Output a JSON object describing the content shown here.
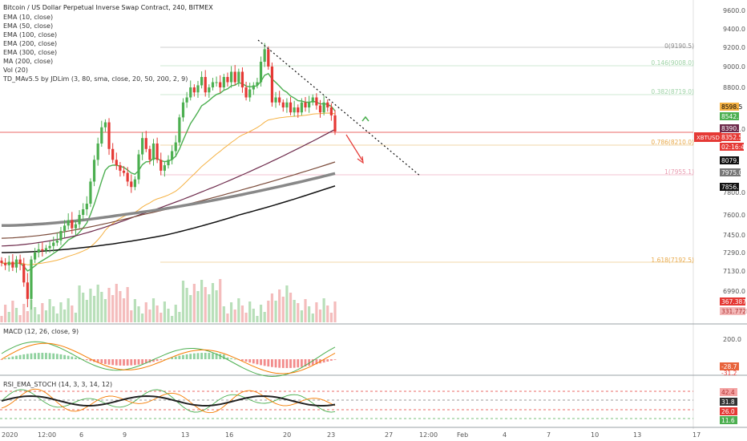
{
  "header": {
    "title": "Bitcoin / US Dollar Perpetual Inverse Swap Contract, 240, BITMEX",
    "indicators": [
      "EMA (10, close)",
      "EMA (50, close)",
      "EMA (100, close)",
      "EMA (200, close)",
      "EMA (300, close)",
      "MA (200, close)",
      "Vol (20)",
      "TD_MAv5.5 by JDLim (3, 80, sma, close, 20, 50, 200, 2, 9)"
    ]
  },
  "price_axis": {
    "ticks": [
      "9600.0",
      "9400.0",
      "9200.0",
      "9000.0",
      "8800.0",
      "8600.0",
      "7800.0",
      "7600.0",
      "7450.0",
      "7290.0",
      "7130.0",
      "6990.0"
    ]
  },
  "price_labels": {
    "p1": "8598.5",
    "p2": "8542.5",
    "p3": "8390.0",
    "symbol": "XBTUSD",
    "p4": "8352.5",
    "countdown": "02:16:42",
    "p5": "8079.5",
    "p6": "7975.0",
    "p7": "7856.5",
    "vol1": "367.387M",
    "vol2": "331.772M"
  },
  "fib": {
    "l0": "0(9190.5)",
    "l1": "0.146(9008.0)",
    "l2": "0.382(8719.0)",
    "l3": "0.786(8210.0)",
    "l4": "1(7955.1)",
    "l5": "1.618(7192.5)"
  },
  "macd": {
    "label": "MACD (12, 26, close, 9)",
    "tick": "200.0",
    "v1": "-28.7",
    "v2": "-31.2"
  },
  "rsi": {
    "label": "RSI_EMA_STOCH (14, 3, 3, 14, 12)",
    "v1": "42.4",
    "v2": "31.8",
    "v3": "26.0",
    "v4": "11.6"
  },
  "time_axis": {
    "labels": [
      "2020",
      "12:00",
      "6",
      "9",
      "13",
      "16",
      "20",
      "23",
      "27",
      "12:00",
      "Feb",
      "4",
      "7",
      "10",
      "13",
      "17"
    ]
  },
  "colors": {
    "up": "#4caf50",
    "down": "#e53935",
    "ema10": "#4caf50",
    "ema50": "#f5b142",
    "ema100": "#6d2a4b",
    "ema200": "#7b4b3a",
    "ema300": "#888888",
    "ma200": "#111111"
  },
  "chart_data": {
    "type": "candlestick",
    "title": "Bitcoin / US Dollar Perpetual Inverse Swap Contract, 240, BITMEX",
    "ylim": [
      6880,
      9700
    ],
    "close_series": [
      7200,
      7180,
      7210,
      7160,
      7230,
      7190,
      7050,
      6950,
      7230,
      7290,
      7320,
      7310,
      7330,
      7350,
      7380,
      7400,
      7480,
      7520,
      7560,
      7500,
      7530,
      7600,
      7650,
      7700,
      7900,
      8100,
      8250,
      8400,
      8450,
      8200,
      8100,
      8050,
      8000,
      7980,
      7900,
      7850,
      7920,
      8150,
      8300,
      8200,
      8100,
      8250,
      8100,
      8000,
      8050,
      8100,
      8180,
      8260,
      8500,
      8650,
      8700,
      8800,
      8750,
      8820,
      8900,
      8750,
      8800,
      8850,
      8850,
      8800,
      8900,
      8850,
      8950,
      8850,
      8950,
      8800,
      8700,
      8780,
      8820,
      8850,
      9050,
      9180,
      9000,
      8650,
      8700,
      8650,
      8600,
      8650,
      8550,
      8600,
      8550,
      8650,
      8600,
      8650,
      8700,
      8620,
      8550,
      8650,
      8600,
      8520,
      8360
    ],
    "volume_scale_labels": [
      "367.387M",
      "331.772M"
    ]
  }
}
